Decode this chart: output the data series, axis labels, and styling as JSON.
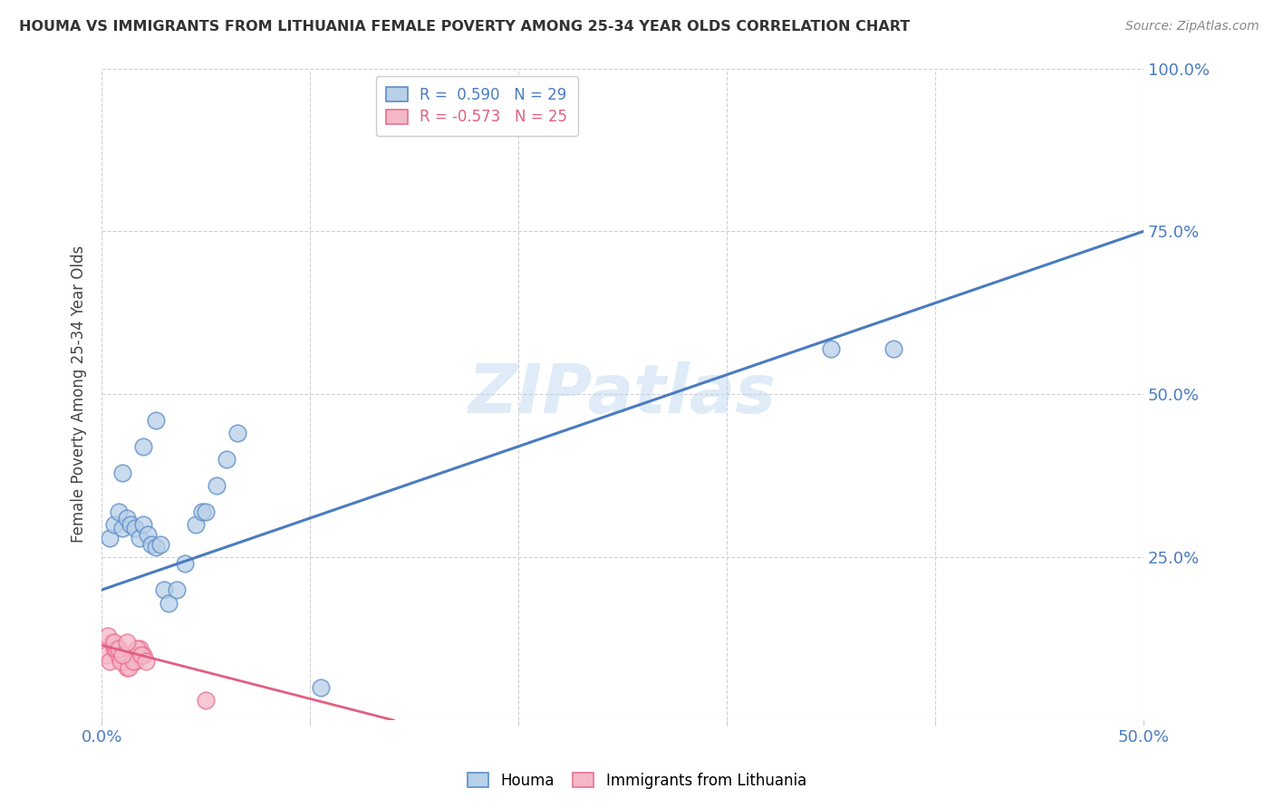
{
  "title": "HOUMA VS IMMIGRANTS FROM LITHUANIA FEMALE POVERTY AMONG 25-34 YEAR OLDS CORRELATION CHART",
  "source": "Source: ZipAtlas.com",
  "ylabel": "Female Poverty Among 25-34 Year Olds",
  "xlim": [
    0.0,
    0.5
  ],
  "ylim": [
    0.0,
    1.0
  ],
  "xticks": [
    0.0,
    0.1,
    0.2,
    0.3,
    0.4,
    0.5
  ],
  "yticks": [
    0.0,
    0.25,
    0.5,
    0.75,
    1.0
  ],
  "xtick_labels": [
    "0.0%",
    "",
    "",
    "",
    "",
    "50.0%"
  ],
  "ytick_labels": [
    "",
    "25.0%",
    "50.0%",
    "75.0%",
    "100.0%"
  ],
  "houma_R": 0.59,
  "houma_N": 29,
  "lith_R": -0.573,
  "lith_N": 25,
  "houma_color": "#b8d0e8",
  "houma_edge_color": "#5b8dc8",
  "houma_line_color": "#4a7bbf",
  "lith_color": "#f5b8c8",
  "lith_edge_color": "#e87090",
  "lith_line_color": "#e06080",
  "watermark": "ZIPatlas",
  "houma_x": [
    0.004,
    0.006,
    0.008,
    0.01,
    0.012,
    0.014,
    0.016,
    0.018,
    0.02,
    0.022,
    0.024,
    0.026,
    0.028,
    0.03,
    0.032,
    0.036,
    0.04,
    0.045,
    0.048,
    0.055,
    0.06,
    0.065,
    0.05,
    0.01,
    0.35,
    0.38,
    0.026,
    0.02,
    0.105
  ],
  "houma_y": [
    0.28,
    0.3,
    0.32,
    0.295,
    0.31,
    0.3,
    0.295,
    0.28,
    0.3,
    0.285,
    0.27,
    0.265,
    0.27,
    0.2,
    0.18,
    0.2,
    0.24,
    0.3,
    0.32,
    0.36,
    0.4,
    0.44,
    0.32,
    0.38,
    0.57,
    0.57,
    0.46,
    0.42,
    0.05
  ],
  "lith_x": [
    0.002,
    0.004,
    0.006,
    0.008,
    0.01,
    0.012,
    0.014,
    0.016,
    0.018,
    0.02,
    0.005,
    0.007,
    0.009,
    0.011,
    0.013,
    0.015,
    0.017,
    0.019,
    0.021,
    0.003,
    0.006,
    0.008,
    0.01,
    0.012,
    0.05
  ],
  "lith_y": [
    0.1,
    0.09,
    0.11,
    0.1,
    0.09,
    0.08,
    0.1,
    0.09,
    0.11,
    0.1,
    0.12,
    0.11,
    0.09,
    0.1,
    0.08,
    0.09,
    0.11,
    0.1,
    0.09,
    0.13,
    0.12,
    0.11,
    0.1,
    0.12,
    0.03
  ],
  "houma_line_x0": 0.0,
  "houma_line_x1": 0.5,
  "houma_line_y0": 0.2,
  "houma_line_y1": 0.75,
  "lith_line_x0": 0.0,
  "lith_line_x1": 0.14,
  "lith_line_y0": 0.115,
  "lith_line_y1": 0.0,
  "background_color": "#ffffff",
  "grid_color": "#d0d0d0"
}
